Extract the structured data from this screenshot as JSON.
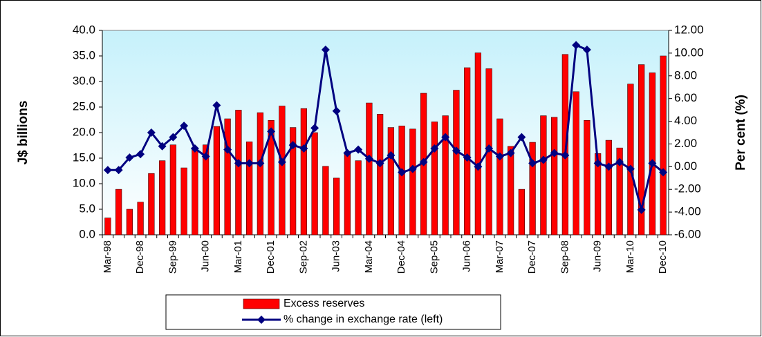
{
  "chart_data": {
    "type": "bar-line",
    "y_label": "J$ billions",
    "y2_label": "Per cent (%)",
    "categories": [
      "Mar-98",
      null,
      null,
      "Dec-98",
      null,
      null,
      "Sep-99",
      null,
      null,
      "Jun-00",
      null,
      null,
      "Mar-01",
      null,
      null,
      "Dec-01",
      null,
      null,
      "Sep-02",
      null,
      null,
      "Jun-03",
      null,
      null,
      "Mar-04",
      null,
      null,
      "Dec-04",
      null,
      null,
      "Sep-05",
      null,
      null,
      "Jun-06",
      null,
      null,
      "Mar-07",
      null,
      null,
      "Dec-07",
      null,
      null,
      "Sep-08",
      null,
      null,
      "Jun-09",
      null,
      null,
      "Mar-10",
      null,
      null,
      "Dec-10"
    ],
    "series": [
      {
        "name": "Excess reserves",
        "type": "bar",
        "color": "#ff0000",
        "values": [
          3.3,
          8.9,
          5.0,
          6.4,
          12.0,
          14.5,
          17.6,
          13.1,
          17.0,
          17.6,
          21.2,
          22.7,
          24.4,
          18.2,
          23.9,
          22.4,
          25.2,
          21.0,
          24.7,
          20.0,
          13.4,
          11.1,
          16.0,
          14.5,
          25.8,
          23.6,
          21.0,
          21.3,
          20.7,
          27.7,
          22.1,
          23.3,
          28.3,
          32.7,
          35.6,
          32.5,
          22.7,
          17.3,
          8.9,
          18.1,
          23.3,
          23.0,
          35.3,
          28.0,
          22.4,
          15.9,
          18.5,
          17.0,
          29.5,
          33.3,
          31.7,
          35.0
        ]
      },
      {
        "name": "% change in exchange rate (left)",
        "type": "line",
        "axis": "y2",
        "color": "#000080",
        "values": [
          -0.3,
          -0.3,
          0.8,
          1.1,
          3.0,
          1.8,
          2.6,
          3.6,
          1.6,
          0.9,
          5.4,
          1.5,
          0.3,
          0.3,
          0.3,
          3.1,
          0.4,
          1.9,
          1.6,
          3.4,
          10.3,
          4.9,
          1.2,
          1.5,
          0.7,
          0.3,
          1.0,
          -0.5,
          -0.2,
          0.4,
          1.6,
          2.6,
          1.4,
          0.8,
          0.0,
          1.6,
          0.9,
          1.2,
          2.6,
          0.3,
          0.6,
          1.2,
          1.0,
          10.7,
          10.3,
          0.3,
          0.0,
          0.4,
          -0.2,
          -3.8,
          0.3,
          -0.5
        ]
      }
    ],
    "ylim": [
      0,
      40
    ],
    "yticks": [
      {
        "value": 0,
        "label": "0.0"
      },
      {
        "value": 5,
        "label": "5.0"
      },
      {
        "value": 10,
        "label": "10.0"
      },
      {
        "value": 15,
        "label": "15.0"
      },
      {
        "value": 20,
        "label": "20.0"
      },
      {
        "value": 25,
        "label": "25.0"
      },
      {
        "value": 30,
        "label": "30.0"
      },
      {
        "value": 35,
        "label": "35.0"
      },
      {
        "value": 40,
        "label": "40.0"
      }
    ],
    "y2lim": [
      -6,
      12
    ],
    "y2ticks": [
      {
        "value": -6,
        "label": "-6.00"
      },
      {
        "value": -4,
        "label": "-4.00"
      },
      {
        "value": -2,
        "label": "-2.00"
      },
      {
        "value": 0,
        "label": "0.00"
      },
      {
        "value": 2,
        "label": "2.00"
      },
      {
        "value": 4,
        "label": "4.00"
      },
      {
        "value": 6,
        "label": "6.00"
      },
      {
        "value": 8,
        "label": "8.00"
      },
      {
        "value": 10,
        "label": "10.00"
      },
      {
        "value": 12,
        "label": "12.00"
      }
    ]
  }
}
